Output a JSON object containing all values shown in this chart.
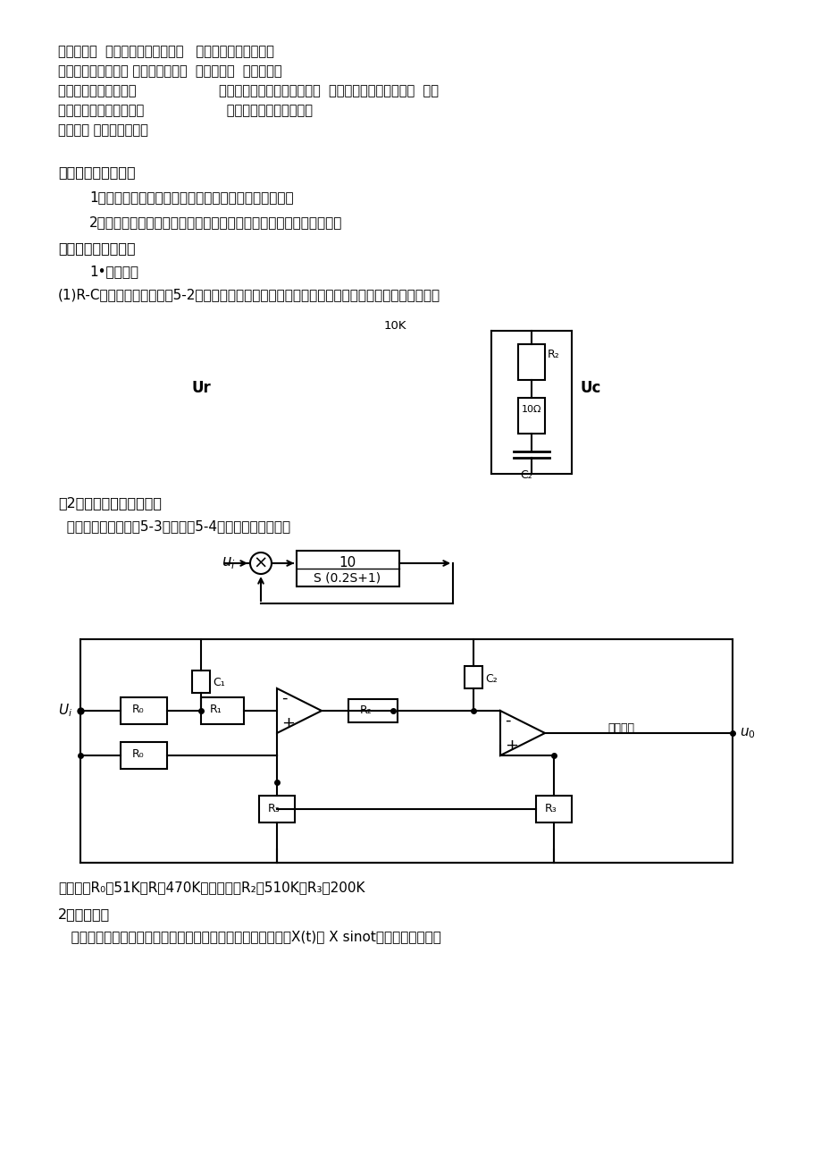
{
  "bg_color": "#ffffff",
  "text_color": "#000000",
  "header_lines": [
    "课程名称：  实验名称：控制理论乙   指导老师：＿成绩：一",
    "一、实验目的和要求 频率特性的测量  实验类型：  同组学生：",
    "填）三、主要仪器设备                    二、实验内容和原理（必填）  四、操作方法和实验步骤  六、",
    "（必填）五、实验数据记                    实验结果与分析（必填）",
    "录和处理 七、讨论、心得"
  ],
  "section1_title": "一、实验目的和要求",
  "section1_items": [
    "1．掌握用李沙育图形法，测量各典型环节的频率特性；",
    "2．根据所测得的频率特性，作出伯德图，据此求得环节的传递函数。"
  ],
  "section2_title": "二、实验内容和原理",
  "subsection1": "1•实验内容",
  "para1": "(1)R-C网络的频率特性。图5-2为滞后一超前校正网络的接线图，分别测试其幅频特性和相频特性。",
  "label_10k": "10K",
  "label_ur": "Ur",
  "label_uc": "Uc",
  "para2_title": "（2）闭环频率特性的测试",
  "para2": "  被测的二阶系统如图5-3所示，图5-4为它的模拟电路图。",
  "tf_num": "10",
  "tf_den": "S (0.2S+1)",
  "section_principle": "2．实验原理",
  "principle_text": "   对于稳定的线性定常系统或环节，当其输入端加入一正弦信号X(t)＝ X sinot，它的稳态输出是"
}
